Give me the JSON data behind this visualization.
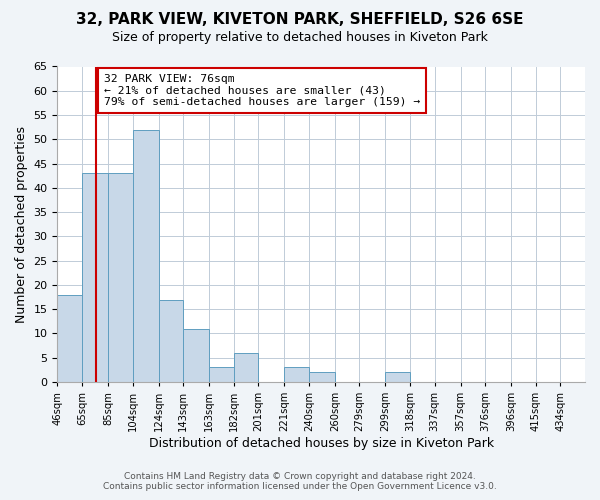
{
  "title": "32, PARK VIEW, KIVETON PARK, SHEFFIELD, S26 6SE",
  "subtitle": "Size of property relative to detached houses in Kiveton Park",
  "xlabel": "Distribution of detached houses by size in Kiveton Park",
  "ylabel": "Number of detached properties",
  "bin_labels": [
    "46sqm",
    "65sqm",
    "85sqm",
    "104sqm",
    "124sqm",
    "143sqm",
    "163sqm",
    "182sqm",
    "201sqm",
    "221sqm",
    "240sqm",
    "260sqm",
    "279sqm",
    "299sqm",
    "318sqm",
    "337sqm",
    "357sqm",
    "376sqm",
    "396sqm",
    "415sqm",
    "434sqm"
  ],
  "bin_edges": [
    46,
    65,
    85,
    104,
    124,
    143,
    163,
    182,
    201,
    221,
    240,
    260,
    279,
    299,
    318,
    337,
    357,
    376,
    396,
    415,
    434
  ],
  "counts": [
    18,
    43,
    43,
    52,
    17,
    11,
    3,
    6,
    0,
    3,
    2,
    0,
    0,
    2,
    0,
    0,
    0,
    0,
    0,
    0
  ],
  "bar_color": "#c8d8e8",
  "bar_edge_color": "#5f9ec0",
  "vline_x": 76,
  "vline_color": "#cc0000",
  "annotation_text": "32 PARK VIEW: 76sqm\n← 21% of detached houses are smaller (43)\n79% of semi-detached houses are larger (159) →",
  "annotation_box_color": "#ffffff",
  "annotation_box_edge_color": "#cc0000",
  "ylim": [
    0,
    65
  ],
  "yticks": [
    0,
    5,
    10,
    15,
    20,
    25,
    30,
    35,
    40,
    45,
    50,
    55,
    60,
    65
  ],
  "footer_line1": "Contains HM Land Registry data © Crown copyright and database right 2024.",
  "footer_line2": "Contains public sector information licensed under the Open Government Licence v3.0.",
  "bg_color": "#f0f4f8",
  "plot_bg_color": "#ffffff",
  "grid_color": "#c0ccd8"
}
